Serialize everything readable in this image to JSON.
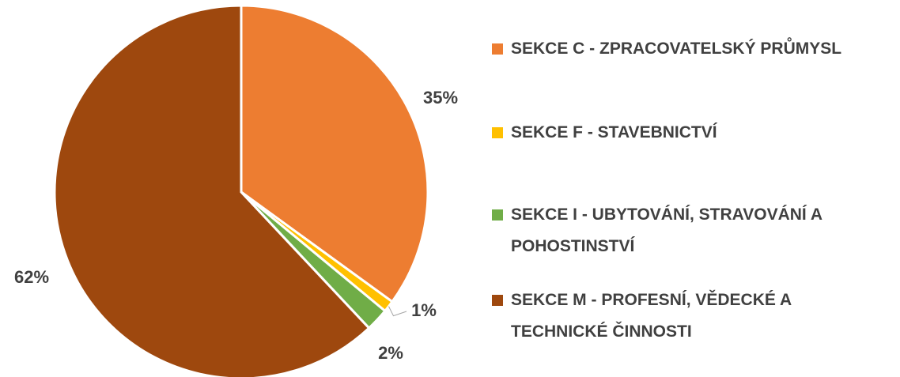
{
  "chart_data": {
    "type": "pie",
    "categories": [
      "SEKCE C - ZPRACOVATELSKÝ PRŮMYSL",
      "SEKCE F - STAVEBNICTVÍ",
      "SEKCE I - UBYTOVÁNÍ, STRAVOVÁNÍ A POHOSTINSTVÍ",
      "SEKCE M - PROFESNÍ, VĚDECKÉ A TECHNICKÉ ČINNOSTI"
    ],
    "values": [
      35,
      1,
      2,
      62
    ],
    "value_labels": [
      "35%",
      "1%",
      "2%",
      "62%"
    ],
    "colors": [
      "#ED7D31",
      "#FFC000",
      "#70AD47",
      "#9E480E"
    ],
    "legend": "right"
  }
}
